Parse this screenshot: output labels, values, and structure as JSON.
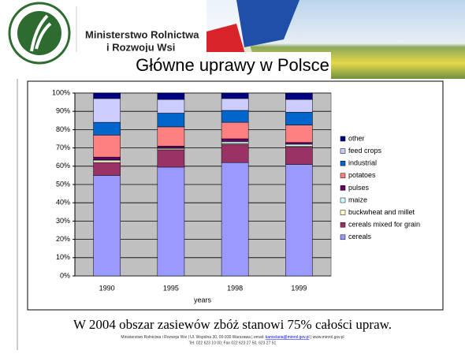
{
  "header": {
    "org_line1": "Ministerstwo Rolnictwa",
    "org_line2": "i Rozwoju Wsi"
  },
  "chart_data": {
    "type": "bar",
    "stacked": true,
    "title": "Główne uprawy w Polsce",
    "xlabel": "years",
    "categories": [
      "1990",
      "1995",
      "1998",
      "1999"
    ],
    "series": [
      {
        "name": "cereals",
        "color": "#9999ff",
        "values": [
          55,
          59.5,
          62,
          61
        ]
      },
      {
        "name": "cereals mixed for grain",
        "color": "#993366",
        "values": [
          7,
          9.5,
          10,
          9.5
        ]
      },
      {
        "name": "buckwheat and millet",
        "color": "#ffffcc",
        "values": [
          1,
          0.5,
          0.5,
          0.5
        ]
      },
      {
        "name": "maize",
        "color": "#ccffff",
        "values": [
          0.5,
          0.5,
          1,
          1
        ]
      },
      {
        "name": "pulses",
        "color": "#660066",
        "values": [
          1.5,
          1,
          1.5,
          1
        ]
      },
      {
        "name": "potatoes",
        "color": "#ff8080",
        "values": [
          12,
          10.5,
          9,
          9.5
        ]
      },
      {
        "name": "industrial",
        "color": "#0066cc",
        "values": [
          7,
          7.5,
          6.5,
          7
        ]
      },
      {
        "name": "feed crops",
        "color": "#ccccff",
        "values": [
          13,
          7.5,
          6.5,
          7
        ]
      },
      {
        "name": "other",
        "color": "#000080",
        "values": [
          3,
          3.5,
          3,
          3.5
        ]
      }
    ],
    "ylim": [
      0,
      100
    ],
    "yticks": [
      {
        "value": 0,
        "label": "0%"
      },
      {
        "value": 10,
        "label": "10%"
      },
      {
        "value": 20,
        "label": "20%"
      },
      {
        "value": 30,
        "label": "30%"
      },
      {
        "value": 40,
        "label": "40%"
      },
      {
        "value": 50,
        "label": "50%"
      },
      {
        "value": 60,
        "label": "60%"
      },
      {
        "value": 70,
        "label": "70%"
      },
      {
        "value": 80,
        "label": "80%"
      },
      {
        "value": 90,
        "label": "90%"
      },
      {
        "value": 100,
        "label": "100%"
      }
    ],
    "grid": true,
    "legend": "right"
  },
  "caption": "W 2004 obszar zasiewów zbóż stanowi 75% całości upraw.",
  "footer": {
    "line1_start": "Ministerstwo Rolnictwa i Rozwoju Wsi | Ul. Wspólna 30, 00-930 Warszawa | email: ",
    "email": "kancelaria@minrol.gov.pl",
    "line1_end": " | www.minrol.gov.pl",
    "line2": "Tel. 022 623 10 00; Fax 022 623 27 50, 623 27 51"
  }
}
